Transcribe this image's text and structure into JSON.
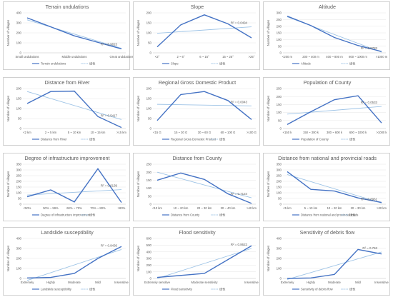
{
  "colors": {
    "series": "#4472c4",
    "trend": "#9dc3e6",
    "text": "#595959",
    "grid": "#e6e6e6",
    "axis": "#bfbfbf"
  },
  "trend_legend_label": "线性",
  "chart_data": [
    {
      "type": "line",
      "title": "Terrain undulations",
      "ylabel": "Number of villages",
      "ylim": [
        0,
        400
      ],
      "yticks": [
        0,
        100,
        200,
        300,
        400
      ],
      "categories": [
        "Small undulations",
        "Middle undulations",
        "Great undulations"
      ],
      "series": [
        {
          "name": "Terrain undulations",
          "values": [
            350,
            170,
            40
          ]
        }
      ],
      "trend": [
        330,
        185,
        45
      ],
      "r2": "R² = 0.9815"
    },
    {
      "type": "line",
      "title": "Slope",
      "ylabel": "Number of villages",
      "ylim": [
        0,
        200
      ],
      "yticks": [
        0,
        50,
        100,
        150,
        200
      ],
      "categories": [
        "<2°",
        "2 ~ 6°",
        "6 ~ 15°",
        "15 ~ 25°",
        ">25°"
      ],
      "series": [
        {
          "name": "Slope",
          "values": [
            30,
            140,
            190,
            145,
            75
          ]
        }
      ],
      "trend": [
        98,
        106,
        114,
        122,
        130
      ],
      "r2": "R² = 0.0494"
    },
    {
      "type": "line",
      "title": "Altitude",
      "ylabel": "Number of villages",
      "ylim": [
        0,
        300
      ],
      "yticks": [
        0,
        50,
        100,
        150,
        200,
        250,
        300
      ],
      "categories": [
        "<200 m",
        "200 ~ 400 m",
        "400 ~ 800 m",
        "800 ~ 1000 m",
        ">1000 m"
      ],
      "series": [
        {
          "name": "Altitude",
          "values": [
            275,
            205,
            115,
            55,
            10
          ]
        }
      ],
      "trend": [
        270,
        200,
        135,
        70,
        5
      ],
      "r2": "R² = 0.9783"
    },
    {
      "type": "line",
      "title": "Distance from River",
      "ylabel": "Number of villages",
      "ylim": [
        0,
        200
      ],
      "yticks": [
        0,
        50,
        100,
        150,
        200
      ],
      "categories": [
        "<2 km",
        "2 ~ 5 km",
        "5 ~ 10 km",
        "10 ~ 15 km",
        ">15 km"
      ],
      "series": [
        {
          "name": "Distance from River",
          "values": [
            125,
            185,
            187,
            60,
            5
          ]
        }
      ],
      "trend": [
        185,
        150,
        115,
        80,
        45
      ],
      "r2": "R² = 0.5417"
    },
    {
      "type": "line",
      "title": "Regional Gross Domestic Product",
      "ylabel": "Number of villages",
      "ylim": [
        0,
        200
      ],
      "yticks": [
        0,
        50,
        100,
        150,
        200
      ],
      "categories": [
        "<15 G",
        "15 ~ 30 G",
        "30 ~ 60 G",
        "60 ~ 100 G",
        ">100 G"
      ],
      "series": [
        {
          "name": "Regional Gross Domestic Product",
          "values": [
            40,
            170,
            185,
            140,
            45
          ]
        }
      ],
      "trend": [
        121,
        119,
        117,
        115,
        113
      ],
      "r2": "R² = 0.0043"
    },
    {
      "type": "line",
      "title": "Population of County",
      "ylabel": "Number of villages",
      "ylim": [
        0,
        250
      ],
      "yticks": [
        0,
        50,
        100,
        150,
        200,
        250
      ],
      "categories": [
        "<150 k",
        "150 ~ 300 k",
        "300 ~ 600 k",
        "600 ~ 1000 k",
        ">1000 k"
      ],
      "series": [
        {
          "name": "Population of County",
          "values": [
            25,
            105,
            180,
            205,
            35
          ]
        }
      ],
      "trend": [
        90,
        102,
        114,
        126,
        138
      ],
      "r2": "R² = 0.0533"
    },
    {
      "type": "line",
      "title": "Degree of infrastructure improvement",
      "ylabel": "Number of villages",
      "ylim": [
        0,
        350
      ],
      "yticks": [
        0,
        50,
        100,
        150,
        200,
        250,
        300,
        350
      ],
      "categories": [
        "<50%",
        "50% ~ 59%",
        "60% ~ 70%",
        "70% ~ 80%",
        ">80%"
      ],
      "series": [
        {
          "name": "Degree of infrastructure improvement",
          "values": [
            65,
            125,
            20,
            310,
            15
          ]
        }
      ],
      "trend": [
        80,
        92,
        104,
        116,
        128
      ],
      "r2": "R² = 0.0139"
    },
    {
      "type": "line",
      "title": "Distance from County",
      "ylabel": "Number of villages",
      "ylim": [
        0,
        250
      ],
      "yticks": [
        0,
        50,
        100,
        150,
        200,
        250
      ],
      "categories": [
        "<10 km",
        "10 ~ 20 km",
        "20 ~ 30 km",
        "30 ~ 40 km",
        ">40 km"
      ],
      "series": [
        {
          "name": "Distance from County",
          "values": [
            150,
            195,
            155,
            65,
            5
          ]
        }
      ],
      "trend": [
        200,
        160,
        120,
        80,
        40
      ],
      "r2": "R² = 0.7124"
    },
    {
      "type": "line",
      "title": "Distance from national and provincial roads",
      "ylabel": "Number of villages",
      "ylim": [
        0,
        350
      ],
      "yticks": [
        0,
        50,
        100,
        150,
        200,
        250,
        300,
        350
      ],
      "categories": [
        "<5 km",
        "5 ~ 10 km",
        "10 ~ 20 km",
        "20 ~ 30 km",
        ">30 km"
      ],
      "series": [
        {
          "name": "Distance from national and provincial roads",
          "values": [
            285,
            130,
            115,
            55,
            15
          ]
        }
      ],
      "trend": [
        260,
        190,
        130,
        70,
        10
      ],
      "r2": "R² = 0.8961"
    },
    {
      "type": "line",
      "title": "Landslide susceptibility",
      "ylabel": "Number of villages",
      "ylim": [
        0,
        400
      ],
      "yticks": [
        0,
        100,
        200,
        300,
        400
      ],
      "categories": [
        "Extremely",
        "Highly",
        "Moderate",
        "Mild",
        "Insensitive"
      ],
      "series": [
        {
          "name": "Landslide susceptibility",
          "values": [
            5,
            10,
            50,
            200,
            320
          ]
        }
      ],
      "trend": [
        -20,
        60,
        140,
        215,
        290
      ],
      "r2": "R² = 0.8436"
    },
    {
      "type": "line",
      "title": "Flood sensitivity",
      "ylabel": "Number of villages",
      "ylim": [
        0,
        600
      ],
      "yticks": [
        0,
        100,
        200,
        300,
        400,
        500,
        600
      ],
      "categories": [
        "Extremely sensitive",
        "Moderate sensitivity",
        "Insensitive"
      ],
      "series": [
        {
          "name": "Flood sensitivity",
          "values": [
            15,
            75,
            490
          ]
        }
      ],
      "trend": [
        0,
        225,
        450
      ],
      "r2": "R² = 0.8622"
    },
    {
      "type": "line",
      "title": "Sensitivity of debris flow",
      "ylabel": "Number of villages",
      "ylim": [
        0,
        400
      ],
      "yticks": [
        0,
        100,
        200,
        300,
        400
      ],
      "categories": [
        "Extremely",
        "Highly",
        "Moderate",
        "Mild",
        "Insensitive"
      ],
      "series": [
        {
          "name": "Sensitivity of debris flow",
          "values": [
            0,
            5,
            40,
            290,
            245
          ]
        }
      ],
      "trend": [
        -10,
        60,
        130,
        200,
        265
      ],
      "r2": "R² = 0.763"
    }
  ]
}
